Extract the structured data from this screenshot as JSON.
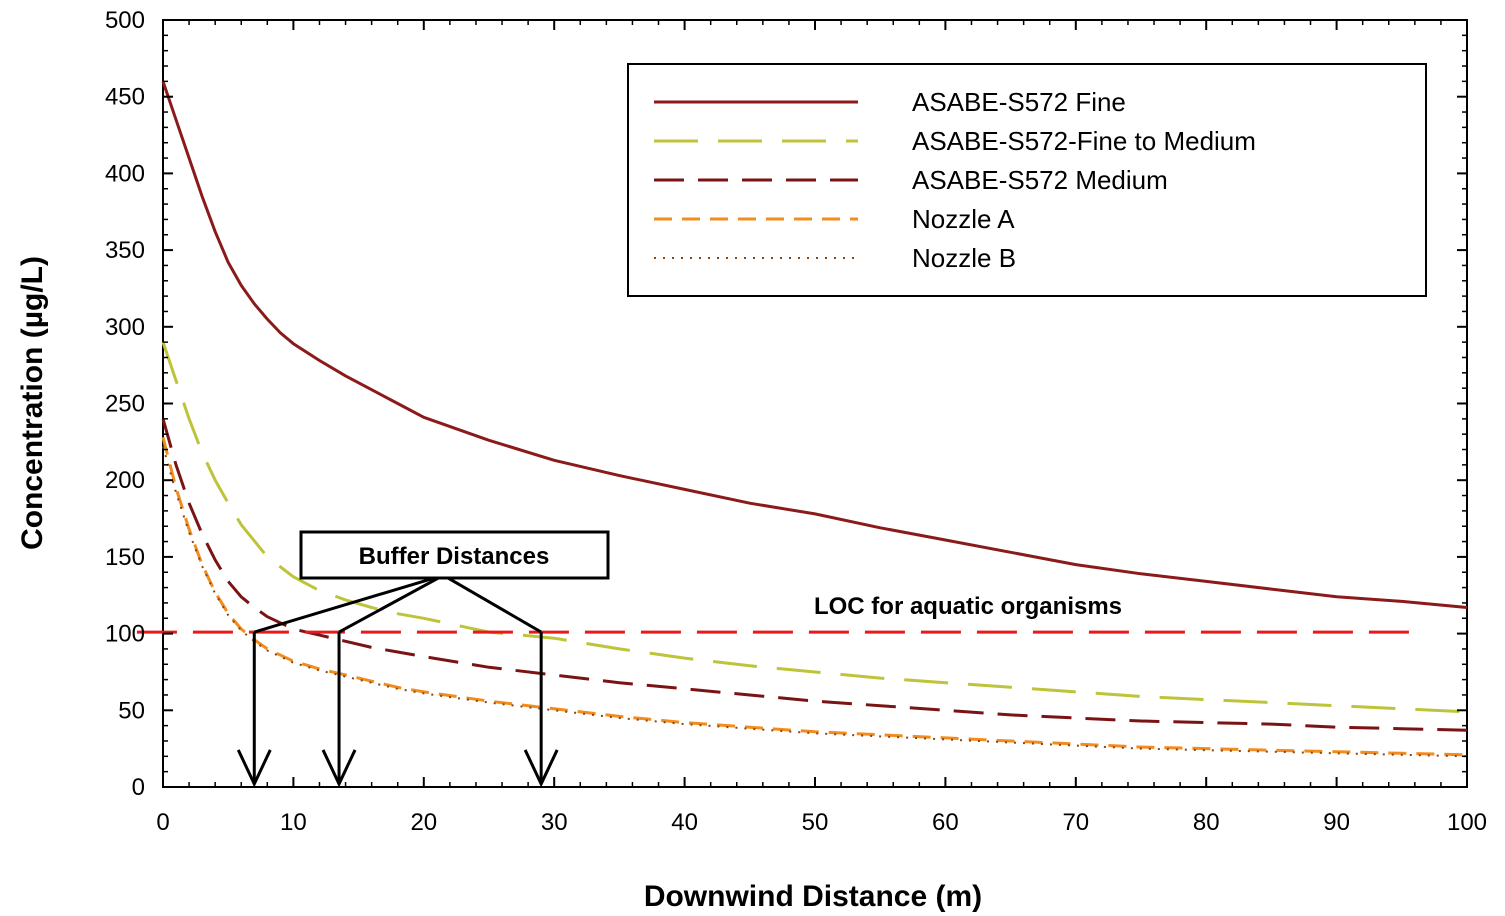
{
  "chart_data": {
    "type": "line",
    "xlabel": "Downwind Distance (m)",
    "ylabel": "Concentration (µg/L)",
    "xlim": [
      0,
      100
    ],
    "ylim": [
      0,
      500
    ],
    "xticks": [
      0,
      10,
      20,
      30,
      40,
      50,
      60,
      70,
      80,
      90,
      100
    ],
    "yticks": [
      0,
      50,
      100,
      150,
      200,
      250,
      300,
      350,
      400,
      450,
      500
    ],
    "legend_position": "top-right",
    "series": [
      {
        "name": "ASABE-S572 Fine",
        "color": "#8b1a1a",
        "style": "solid",
        "x": [
          0,
          1,
          2,
          3,
          4,
          5,
          6,
          7,
          8,
          9,
          10,
          12,
          14,
          16,
          18,
          20,
          25,
          30,
          35,
          40,
          45,
          50,
          55,
          60,
          65,
          70,
          75,
          80,
          85,
          90,
          95,
          100
        ],
        "y": [
          460,
          435,
          410,
          385,
          362,
          342,
          327,
          315,
          305,
          296,
          289,
          278,
          268,
          259,
          250,
          241,
          226,
          213,
          203,
          194,
          185,
          178,
          169,
          161,
          153,
          145,
          139,
          134,
          129,
          124,
          121,
          117
        ]
      },
      {
        "name": "ASABE-S572-Fine to Medium",
        "color": "#bec43a",
        "style": "long-dash",
        "x": [
          0,
          1,
          2,
          3,
          4,
          5,
          6,
          8,
          10,
          12,
          14,
          16,
          18,
          20,
          25,
          30,
          35,
          40,
          45,
          50,
          55,
          60,
          65,
          70,
          75,
          80,
          85,
          90,
          95,
          100
        ],
        "y": [
          290,
          265,
          240,
          218,
          200,
          185,
          171,
          150,
          137,
          128,
          122,
          117,
          113,
          110,
          101,
          97,
          90,
          84,
          79,
          75,
          71,
          68,
          65,
          62,
          59,
          57,
          55,
          53,
          51,
          49
        ]
      },
      {
        "name": "ASABE-S572 Medium",
        "color": "#7a1414",
        "style": "dash",
        "x": [
          0,
          1,
          2,
          3,
          4,
          5,
          6,
          7,
          8,
          10,
          12,
          14,
          16,
          18,
          20,
          25,
          30,
          35,
          40,
          45,
          50,
          55,
          60,
          65,
          70,
          75,
          80,
          85,
          90,
          95,
          100
        ],
        "y": [
          240,
          210,
          185,
          165,
          148,
          134,
          124,
          117,
          111,
          103,
          99,
          95,
          91,
          88,
          85,
          78,
          73,
          68,
          64,
          60,
          56,
          53,
          50,
          47,
          45,
          43,
          42,
          41,
          39,
          38,
          37
        ]
      },
      {
        "name": "Nozzle A",
        "color": "#f28c1c",
        "style": "short-dash",
        "x": [
          0,
          1,
          2,
          3,
          4,
          5,
          6,
          7,
          8,
          10,
          12,
          14,
          16,
          18,
          20,
          25,
          30,
          35,
          40,
          45,
          50,
          55,
          60,
          65,
          70,
          75,
          80,
          85,
          90,
          95,
          100
        ],
        "y": [
          228,
          195,
          168,
          145,
          127,
          113,
          103,
          96,
          90,
          82,
          77,
          73,
          69,
          65,
          62,
          56,
          51,
          46,
          42,
          39,
          36,
          34,
          32,
          30,
          28,
          26,
          25,
          24,
          23,
          22,
          21
        ]
      },
      {
        "name": "Nozzle B",
        "color": "#8b4513",
        "style": "dotted",
        "x": [
          0,
          1,
          2,
          3,
          4,
          5,
          6,
          7,
          8,
          10,
          12,
          14,
          16,
          18,
          20,
          25,
          30,
          35,
          40,
          45,
          50,
          55,
          60,
          65,
          70,
          75,
          80,
          85,
          90,
          95,
          100
        ],
        "y": [
          222,
          192,
          166,
          144,
          126,
          112,
          102,
          95,
          89,
          81,
          76,
          72,
          68,
          64,
          61,
          55,
          50,
          45,
          41,
          38,
          35,
          33,
          31,
          29,
          27,
          25,
          24,
          23,
          22,
          21,
          20
        ]
      }
    ],
    "reference_line": {
      "label": "LOC for aquatic organisms",
      "y": 101,
      "x_range": [
        -2,
        96
      ],
      "color": "#e8191b"
    },
    "annotation": {
      "label": "Buffer Distances",
      "x": 22,
      "y": 150,
      "arrows_at_x": [
        7,
        13.5,
        29
      ]
    }
  }
}
